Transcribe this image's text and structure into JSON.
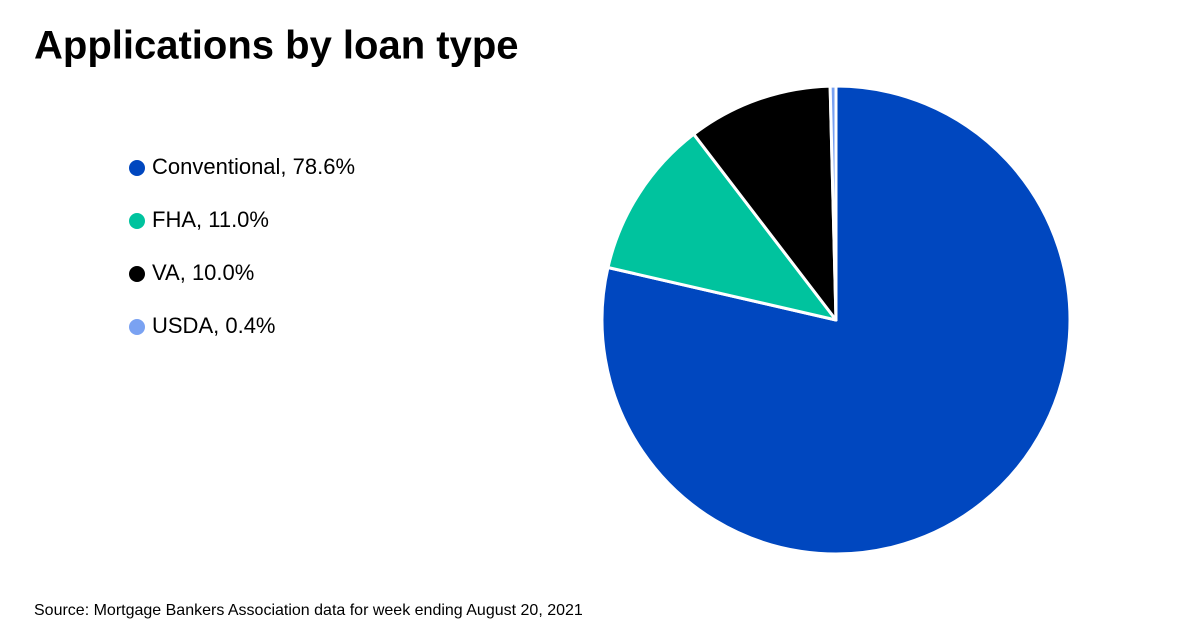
{
  "chart_data": {
    "type": "pie",
    "title": "Applications by loan type",
    "categories": [
      "Conventional, 78.6%",
      "FHA, 11.0%",
      "VA, 10.0%",
      "USDA, 0.4%"
    ],
    "values": [
      78.6,
      11.0,
      10.0,
      0.4
    ],
    "colors": [
      "#0047bf",
      "#00c39e",
      "#000000",
      "#7aa2f2"
    ],
    "source": "Source: Mortgage Bankers Association data for week ending August 20, 2021"
  }
}
